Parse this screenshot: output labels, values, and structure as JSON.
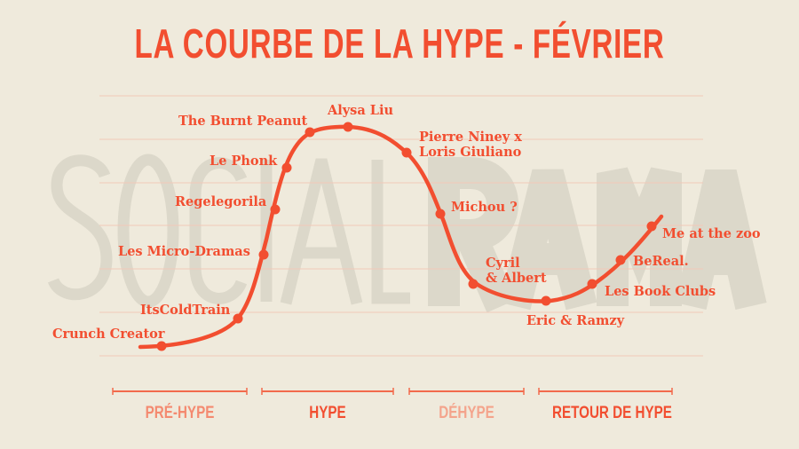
{
  "title": "LA COURBE DE LA HYPE - FÉVRIER",
  "watermark": {
    "light": "SOCIAL",
    "bold": "RAMA"
  },
  "colors": {
    "accent": "#f24e30",
    "background": "#efeadc",
    "gridline": "#f2c9b8",
    "watermark": "#dcd8ca"
  },
  "items": [
    {
      "label": "Crunch Creator"
    },
    {
      "label": "ItsColdTrain"
    },
    {
      "label": "Les Micro-Dramas"
    },
    {
      "label": "Regelegorila"
    },
    {
      "label": "Le Phonk"
    },
    {
      "label": "The Burnt Peanut"
    },
    {
      "label": "Alysa Liu"
    },
    {
      "label": "Pierre Niney x\nLoris Giuliano"
    },
    {
      "label": "Michou ?"
    },
    {
      "label": "Cyril\n& Albert"
    },
    {
      "label": "Eric & Ramzy"
    },
    {
      "label": "Les Book Clubs"
    },
    {
      "label": "BeReal."
    },
    {
      "label": "Me at the zoo"
    }
  ],
  "phases": [
    {
      "label": "PRÉ-HYPE",
      "color": "#f48a70"
    },
    {
      "label": "HYPE",
      "color": "#f24e30"
    },
    {
      "label": "DÉHYPE",
      "color": "#f4a48c"
    },
    {
      "label": "RETOUR DE HYPE",
      "color": "#f24e30"
    }
  ]
}
